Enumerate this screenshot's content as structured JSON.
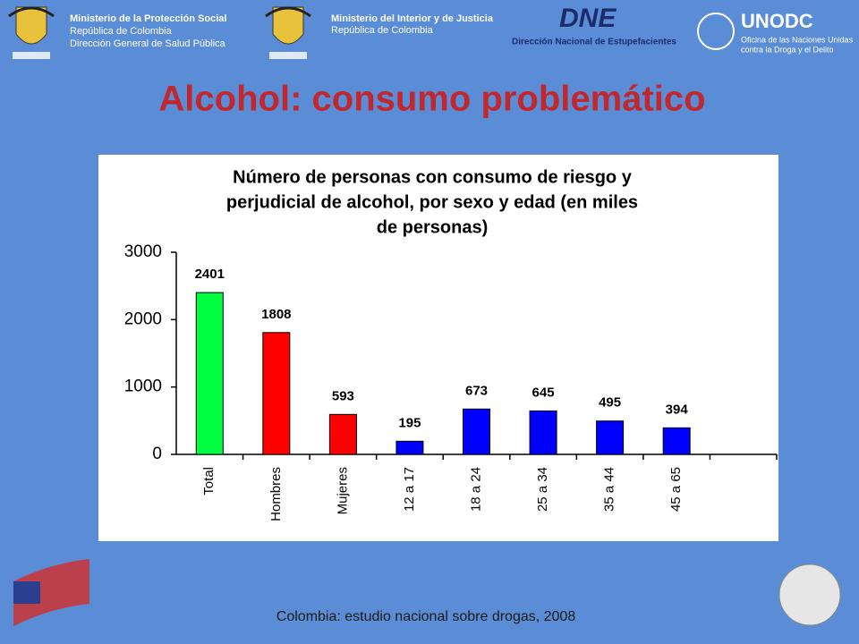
{
  "header": {
    "left": [
      "Ministerio de la Protección Social",
      "República de Colombia",
      "Dirección General de Salud Pública"
    ],
    "middle": [
      "Ministerio del Interior y de Justicia",
      "República de Colombia"
    ],
    "dne": "DNE",
    "dne_name": "Dirección Nacional de Estupefacientes",
    "unodc": "UNODC",
    "unodc_name": [
      "Oficina de las Naciones Unidas",
      "contra la Droga y el Delito"
    ]
  },
  "slide_title": "Alcohol: consumo problemático",
  "footer": "Colombia: estudio nacional sobre drogas, 2008",
  "chart_data": {
    "type": "bar",
    "title": [
      "Número de personas con consumo de riesgo y",
      "perjudicial de alcohol, por sexo y edad (en miles",
      "de personas)"
    ],
    "categories": [
      "Total",
      "Hombres",
      "Mujeres",
      "12 a 17",
      "18 a 24",
      "25 a 34",
      "35 a 44",
      "45 a 65",
      null
    ],
    "values": [
      2401,
      1808,
      593,
      195,
      673,
      645,
      495,
      394,
      null
    ],
    "colors": [
      "#00ff40",
      "#ff0000",
      "#ff0000",
      "#0000ff",
      "#0000ff",
      "#0000ff",
      "#0000ff",
      "#0000ff",
      null
    ],
    "ylim": [
      0,
      3000
    ],
    "yticks": [
      0,
      1000,
      2000,
      3000
    ],
    "grid": false
  }
}
